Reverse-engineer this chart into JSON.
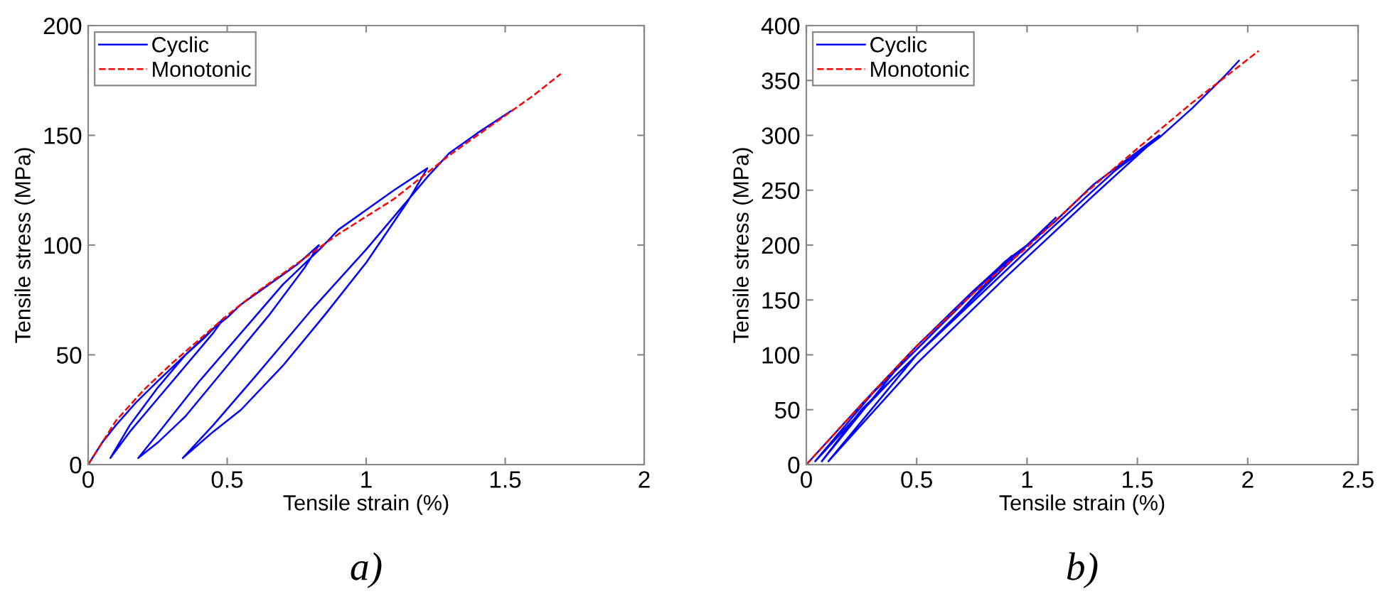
{
  "chart_data": [
    {
      "type": "line",
      "xlabel": "Tensile strain (%)",
      "ylabel": "Tensile stress (MPa)",
      "xlim": [
        0,
        2
      ],
      "ylim": [
        0,
        200
      ],
      "xticks": [
        0,
        0.5,
        1,
        1.5,
        2
      ],
      "yticks": [
        0,
        50,
        100,
        150,
        200
      ],
      "legend": "top left",
      "grid": false,
      "annotations": [
        "a)"
      ],
      "series": [
        {
          "name": "Cyclic",
          "color": "#0000ff",
          "line_style": "solid",
          "x": [
            0,
            0.05,
            0.1,
            0.17,
            0.25,
            0.35,
            0.42,
            0.49,
            0.45,
            0.35,
            0.25,
            0.15,
            0.08,
            0.15,
            0.25,
            0.35,
            0.45,
            0.5,
            0.55,
            0.65,
            0.75,
            0.83,
            0.78,
            0.65,
            0.5,
            0.35,
            0.25,
            0.18,
            0.25,
            0.4,
            0.55,
            0.7,
            0.84,
            0.9,
            1.0,
            1.1,
            1.22,
            1.15,
            1.0,
            0.85,
            0.7,
            0.55,
            0.45,
            0.34,
            0.45,
            0.6,
            0.8,
            1.0,
            1.1,
            1.22,
            1.3,
            1.4,
            1.52
          ],
          "values": [
            0,
            10,
            18,
            28,
            38,
            50,
            58,
            67,
            60,
            45,
            30,
            15,
            3,
            18,
            35,
            50,
            62,
            67,
            73,
            82,
            91,
            100,
            90,
            68,
            45,
            22,
            10,
            3,
            14,
            38,
            60,
            82,
            99,
            107,
            116,
            125,
            135,
            120,
            92,
            68,
            45,
            25,
            15,
            3,
            18,
            40,
            70,
            98,
            113,
            131,
            142,
            151,
            161
          ]
        },
        {
          "name": "Monotonic",
          "color": "#ff0000",
          "line_style": "dashed",
          "x": [
            0,
            0.1,
            0.2,
            0.3,
            0.4,
            0.5,
            0.6,
            0.7,
            0.8,
            0.9,
            1.0,
            1.1,
            1.2,
            1.3,
            1.4,
            1.5,
            1.6,
            1.7
          ],
          "values": [
            0,
            20,
            34,
            46,
            57,
            68,
            78,
            87,
            96,
            105,
            113,
            121,
            131,
            141,
            150,
            159,
            168,
            178
          ]
        }
      ]
    },
    {
      "type": "line",
      "xlabel": "Tensile strain (%)",
      "ylabel": "Tensile stress (MPa)",
      "xlim": [
        0,
        2.5
      ],
      "ylim": [
        0,
        400
      ],
      "xticks": [
        0,
        0.5,
        1,
        1.5,
        2,
        2.5
      ],
      "yticks": [
        0,
        50,
        100,
        150,
        200,
        250,
        300,
        350,
        400
      ],
      "legend": "top left",
      "grid": false,
      "annotations": [
        "b)"
      ],
      "series": [
        {
          "name": "Cyclic",
          "color": "#0000ff",
          "line_style": "solid",
          "x": [
            0,
            0.25,
            0.5,
            0.75,
            0.93,
            0.7,
            0.4,
            0.2,
            0.04,
            0.3,
            0.6,
            0.9,
            1.0,
            1.13,
            0.9,
            0.5,
            0.25,
            0.07,
            0.4,
            0.8,
            1.13,
            1.3,
            1.6,
            1.3,
            0.9,
            0.5,
            0.1,
            0.5,
            1.0,
            1.4,
            1.6,
            1.75,
            1.9,
            1.96
          ],
          "values": [
            0,
            55,
            108,
            157,
            190,
            140,
            80,
            38,
            3,
            65,
            125,
            185,
            200,
            225,
            180,
            100,
            50,
            3,
            85,
            165,
            222,
            255,
            300,
            245,
            170,
            92,
            3,
            100,
            195,
            268,
            298,
            325,
            355,
            368
          ]
        },
        {
          "name": "Monotonic",
          "color": "#ff0000",
          "line_style": "dashed",
          "x": [
            0,
            0.25,
            0.5,
            0.75,
            1.0,
            1.25,
            1.5,
            1.75,
            2.05
          ],
          "values": [
            0,
            55,
            108,
            155,
            198,
            245,
            288,
            330,
            377
          ]
        }
      ]
    }
  ]
}
